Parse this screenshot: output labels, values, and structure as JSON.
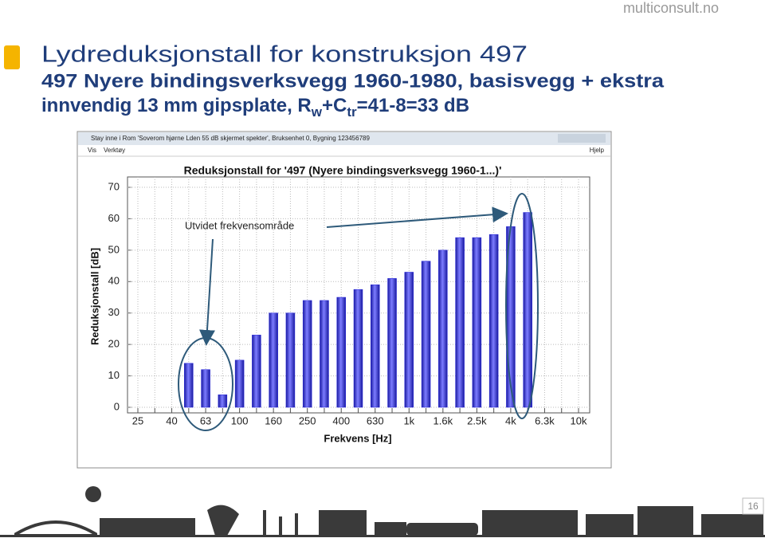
{
  "site": "multiconsult.no",
  "title": "Lydreduksjonstall for konstruksjon 497",
  "subtitle": [
    "497 Nyere bindingsverksvegg 1960-1980, basisvegg + ekstra",
    "innvendig 13 mm gipsplate, R",
    "w",
    "+C",
    "tr",
    "=41-8=33 dB"
  ],
  "window": {
    "title": "Stay inne i Rom 'Soverom hjørne Lden 55 dB skjermet spekter', Bruksenhet 0, Bygning 123456789",
    "menu": [
      "Vis",
      "Verktøy"
    ],
    "help": "Hjelp"
  },
  "page_number": "16",
  "chart_data": {
    "type": "bar",
    "title": "Reduksjonstall for '497 (Nyere bindingsverksvegg 1960-1...)'",
    "x_label": "Frekvens [Hz]",
    "y_label": "Reduksjonstall [dB]",
    "annotation": "Utvidet frekvensområde",
    "categories": [
      "25",
      null,
      "40",
      null,
      "63",
      null,
      "100",
      null,
      "160",
      null,
      "250",
      null,
      "400",
      null,
      "630",
      null,
      "1k",
      null,
      "1.6k",
      null,
      "2.5k",
      null,
      "4k",
      null,
      "6.3k",
      null,
      "10k"
    ],
    "values": [
      null,
      null,
      null,
      14,
      12,
      4,
      15,
      23,
      30,
      30,
      34,
      34,
      35,
      37.5,
      39,
      41,
      43,
      46.5,
      50,
      54,
      54,
      55,
      57.5,
      62,
      null,
      null,
      null
    ],
    "color": "#2222dd",
    "ylim": [
      0,
      70
    ],
    "yticks": [
      0,
      10,
      20,
      30,
      40,
      50,
      60,
      70
    ],
    "grid": true
  }
}
